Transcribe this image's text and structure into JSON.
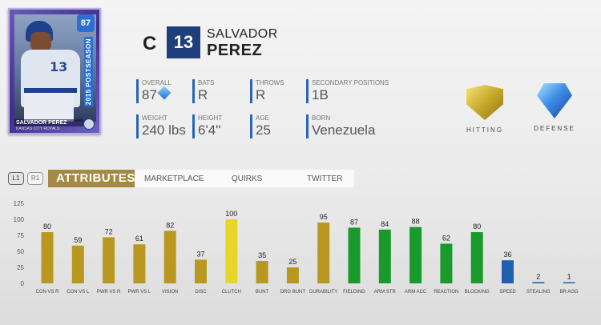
{
  "card": {
    "overall": "87",
    "season": "2015 POSTSEASON",
    "name": "SALVADOR PEREZ",
    "team": "KANSAS CITY ROYALS",
    "jersey_number": "13"
  },
  "header": {
    "position": "C",
    "number": "13",
    "first_name": "SALVADOR",
    "last_name": "PEREZ"
  },
  "stats": {
    "overall": {
      "label": "OVERALL",
      "value": "87"
    },
    "bats": {
      "label": "BATS",
      "value": "R"
    },
    "throws": {
      "label": "THROWS",
      "value": "R"
    },
    "secondary": {
      "label": "SECONDARY POSITIONS",
      "value": "1B"
    },
    "weight": {
      "label": "WEIGHT",
      "value": "240 lbs"
    },
    "height": {
      "label": "HEIGHT",
      "value": "6'4''"
    },
    "age": {
      "label": "AGE",
      "value": "25"
    },
    "born": {
      "label": "BORN",
      "value": "Venezuela"
    }
  },
  "badges": {
    "hitting": "HITTING",
    "defense": "DEFENSE"
  },
  "tabs": {
    "l1": "L1",
    "r1": "R1",
    "attributes": "ATTRIBUTES",
    "marketplace": "MARKETPLACE",
    "quirks": "QUIRKS",
    "twitter": "TWITTER"
  },
  "colors": {
    "hitting": "#b8981e",
    "clutch": "#e6d62a",
    "fielding": "#1a9a2c",
    "speed": "#1f5fb0",
    "accent": "#a58a43"
  },
  "chart_data": {
    "type": "bar",
    "ylim": [
      0,
      125
    ],
    "yticks": [
      0,
      25,
      50,
      75,
      100,
      125
    ],
    "categories": [
      "CON VS R",
      "CON VS L",
      "PWR VS R",
      "PWR VS L",
      "VISION",
      "DISC",
      "CLUTCH",
      "BUNT",
      "DRG BUNT",
      "DURABILITY",
      "FIELDING",
      "ARM STR",
      "ARM ACC",
      "REACTION",
      "BLOCKING",
      "SPEED",
      "STEALING",
      "BR AGG"
    ],
    "values": [
      80,
      59,
      72,
      61,
      82,
      37,
      100,
      35,
      25,
      95,
      87,
      84,
      88,
      62,
      80,
      36,
      2,
      1
    ],
    "groups": [
      "hitting",
      "hitting",
      "hitting",
      "hitting",
      "hitting",
      "hitting",
      "clutch",
      "hitting",
      "hitting",
      "hitting",
      "fielding",
      "fielding",
      "fielding",
      "fielding",
      "fielding",
      "speed",
      "speed",
      "speed"
    ]
  }
}
